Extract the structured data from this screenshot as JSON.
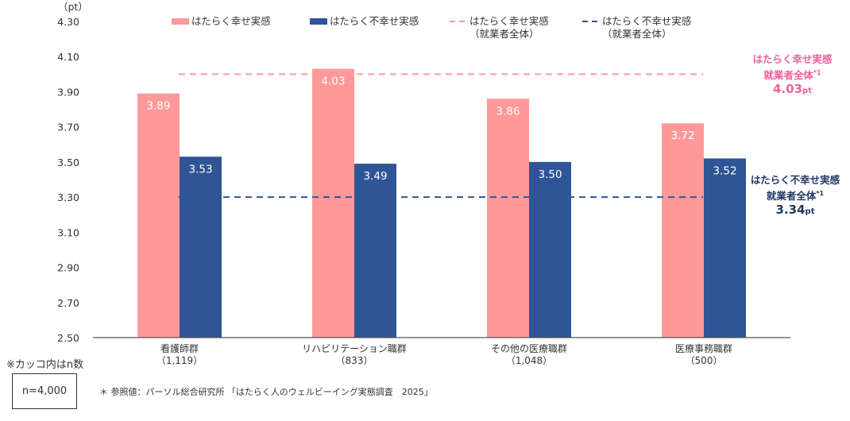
{
  "chart_data": {
    "type": "bar",
    "unit_label": "（pt）",
    "ylim": [
      2.5,
      4.3
    ],
    "yticks": [
      "4.30",
      "4.10",
      "3.90",
      "3.70",
      "3.50",
      "3.30",
      "3.10",
      "2.90",
      "2.70",
      "2.50"
    ],
    "ytick_values": [
      4.3,
      4.1,
      3.9,
      3.7,
      3.5,
      3.3,
      3.1,
      2.9,
      2.7,
      2.5
    ],
    "categories": [
      {
        "name": "看護師群",
        "n": "（1,119）"
      },
      {
        "name": "リハビリテーション職群",
        "n": "（833）"
      },
      {
        "name": "その他の医療職群",
        "n": "（1,048）"
      },
      {
        "name": "医療事務職群",
        "n": "（500）"
      }
    ],
    "series": [
      {
        "name": "はたらく幸せ実感",
        "color": "#FF9999",
        "values": [
          3.89,
          4.03,
          3.86,
          3.72
        ],
        "labels": [
          "3.89",
          "4.03",
          "3.86",
          "3.72"
        ]
      },
      {
        "name": "はたらく不幸せ実感",
        "color": "#2F5597",
        "values": [
          3.53,
          3.49,
          3.5,
          3.52
        ],
        "labels": [
          "3.53",
          "3.49",
          "3.50",
          "3.52"
        ]
      }
    ],
    "reference_lines": [
      {
        "name": "はたらく幸せ実感",
        "name2": "（就業者全体）",
        "color": "#FF9999",
        "value": 4.0
      },
      {
        "name": "はたらく不幸せ実感",
        "name2": "（就業者全体）",
        "color": "#2F5597",
        "value": 3.3
      }
    ],
    "annotations": {
      "happy": {
        "line1": "はたらく幸せ実感",
        "line2": "就業者全体",
        "sup": "*1",
        "value": "4.03",
        "unit": "pt",
        "color": "#F0609A"
      },
      "unhappy": {
        "line1": "はたらく不幸せ実感",
        "line2": "就業者全体",
        "sup": "*1",
        "value": "3.34",
        "unit": "pt",
        "color": "#1F3864"
      }
    },
    "legend_position": "top"
  },
  "notes": {
    "paren_note": "※カッコ内はn数",
    "n_total": "n=4,000",
    "source": "＊ 参照値：パーソル総合研究所 「はたらく人のウェルビーイング実態調査　2025」"
  }
}
